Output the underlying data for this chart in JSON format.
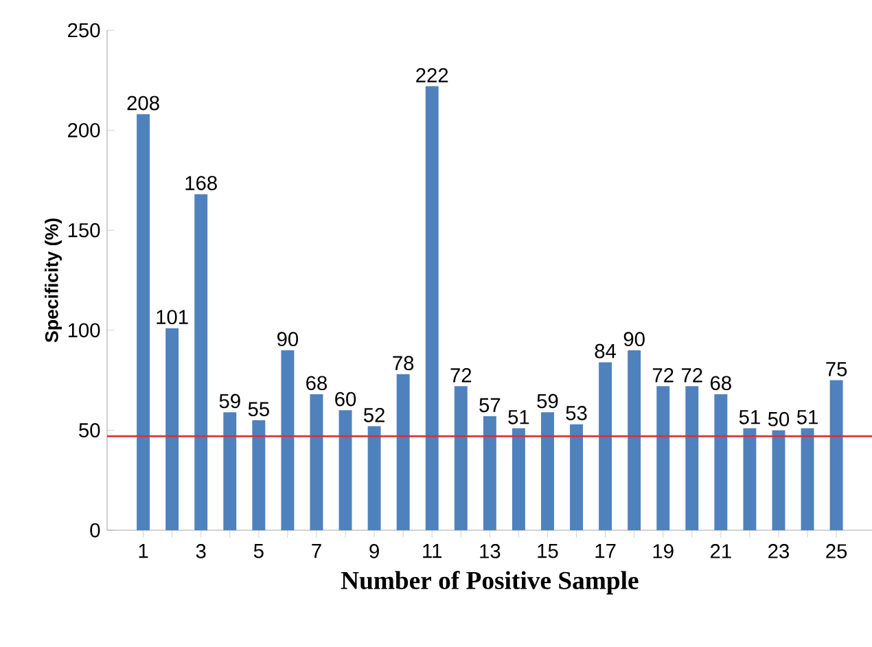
{
  "chart_data": {
    "type": "bar",
    "xlabel": "Number of Positive Sample",
    "ylabel": "Specificity (%)",
    "categories": [
      "1",
      null,
      "3",
      null,
      "5",
      null,
      "7",
      null,
      "9",
      null,
      "11",
      null,
      "13",
      null,
      "15",
      null,
      "17",
      null,
      "19",
      null,
      "21",
      null,
      "23",
      null,
      "25"
    ],
    "values": [
      208,
      101,
      168,
      59,
      55,
      90,
      68,
      60,
      52,
      78,
      222,
      72,
      57,
      51,
      59,
      53,
      84,
      90,
      72,
      72,
      68,
      51,
      50,
      51,
      75
    ],
    "color": "#4f81bd",
    "ylim": [
      0,
      250
    ],
    "yticks": [
      0,
      50,
      100,
      150,
      200,
      250
    ],
    "grid": false,
    "data_labels": true,
    "ref_lines": [
      {
        "axis": "y",
        "value": 47,
        "color": "#e03030"
      }
    ]
  }
}
